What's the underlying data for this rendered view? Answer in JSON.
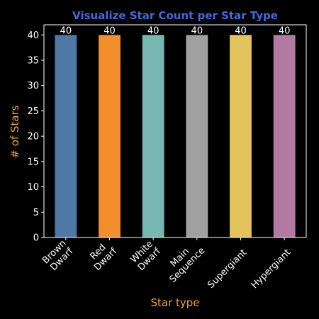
{
  "chart_data": {
    "type": "bar",
    "title": "Visualize Star Count per Star Type",
    "xlabel": "Star type",
    "ylabel": "# of Stars",
    "categories": [
      [
        "Brown",
        "Dwarf"
      ],
      [
        "Red",
        "Dwarf"
      ],
      [
        "White",
        "Dwarf"
      ],
      [
        "Main",
        "Sequence"
      ],
      [
        "Supergiant"
      ],
      [
        "Hypergiant"
      ]
    ],
    "values": [
      40,
      40,
      40,
      40,
      40,
      40
    ],
    "data_labels": [
      "40",
      "40",
      "40",
      "40",
      "40",
      "40"
    ],
    "bar_colors": [
      "#4e79a7",
      "#f28e2b",
      "#76b7b2",
      "#a0a0a0",
      "#e2c35c",
      "#b07aa1"
    ],
    "ylim": [
      0,
      42
    ],
    "yticks": [
      0,
      5,
      10,
      15,
      20,
      25,
      30,
      35,
      40
    ],
    "grid": false,
    "colors": {
      "background": "#000000",
      "title": "#4169e1",
      "axis_label": "#f5a623",
      "text": "#ffffff"
    }
  }
}
